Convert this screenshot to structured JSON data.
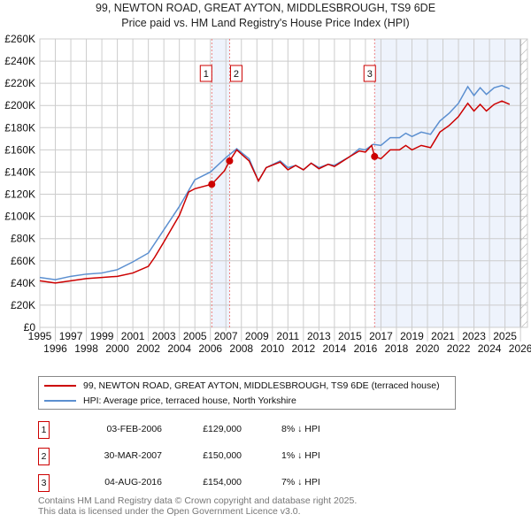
{
  "chart_data": {
    "type": "line",
    "title": "99, NEWTON ROAD, GREAT AYTON, MIDDLESBROUGH, TS9 6DE",
    "subtitle": "Price paid vs. HM Land Registry's House Price Index (HPI)",
    "ylim": [
      0,
      260000
    ],
    "xlim": [
      1995,
      2026
    ],
    "y_ticks": [
      "£0",
      "£20K",
      "£40K",
      "£60K",
      "£80K",
      "£100K",
      "£120K",
      "£140K",
      "£160K",
      "£180K",
      "£200K",
      "£220K",
      "£240K",
      "£260K"
    ],
    "x_ticks": [
      "1995",
      "1996",
      "1997",
      "1998",
      "1999",
      "2000",
      "2001",
      "2002",
      "2003",
      "2004",
      "2005",
      "2006",
      "2007",
      "2008",
      "2009",
      "2010",
      "2011",
      "2012",
      "2013",
      "2014",
      "2015",
      "2016",
      "2017",
      "2018",
      "2019",
      "2020",
      "2021",
      "2022",
      "2023",
      "2024",
      "2025",
      "2026"
    ],
    "series": [
      {
        "name": "99, NEWTON ROAD, GREAT AYTON, MIDDLESBROUGH, TS9 6DE (terraced house)",
        "color": "#cc0000",
        "x": [
          1995,
          1996,
          1997,
          1998,
          1999,
          2000,
          2001,
          2002,
          2002.4,
          2003,
          2004,
          2004.6,
          2005,
          2006.09,
          2006.9,
          2007.24,
          2007.7,
          2008.5,
          2009.1,
          2009.6,
          2010.5,
          2011,
          2011.5,
          2012,
          2012.5,
          2013,
          2013.6,
          2014,
          2015,
          2015.6,
          2016,
          2016.4,
          2016.59,
          2017,
          2017.6,
          2018.2,
          2018.6,
          2019,
          2019.6,
          2020.2,
          2020.8,
          2021.4,
          2022,
          2022.6,
          2023,
          2023.4,
          2023.8,
          2024.3,
          2024.8,
          2025.3
        ],
        "y": [
          42000,
          40000,
          42000,
          44000,
          45000,
          46000,
          49000,
          55000,
          63000,
          77000,
          101000,
          122000,
          125000,
          129000,
          141000,
          150000,
          160000,
          150000,
          132000,
          144000,
          149000,
          142000,
          146000,
          142000,
          148000,
          143000,
          147000,
          145000,
          154000,
          159000,
          158000,
          164000,
          154000,
          152000,
          160000,
          160000,
          164000,
          160000,
          164000,
          162000,
          176000,
          182000,
          190000,
          202000,
          195000,
          201000,
          195000,
          201000,
          204000,
          201000
        ]
      },
      {
        "name": "HPI: Average price, terraced house, North Yorkshire",
        "color": "#5b8fd0",
        "x": [
          1995,
          1996,
          1997,
          1998,
          1999,
          2000,
          2001,
          2002,
          2003,
          2004,
          2005,
          2006,
          2007,
          2007.7,
          2008.5,
          2009.1,
          2009.6,
          2010.5,
          2011,
          2011.5,
          2012,
          2012.5,
          2013,
          2013.6,
          2014,
          2015,
          2015.6,
          2016,
          2016.5,
          2017,
          2017.6,
          2018.2,
          2018.6,
          2019,
          2019.6,
          2020.2,
          2020.8,
          2021.4,
          2022,
          2022.6,
          2023,
          2023.4,
          2023.8,
          2024.3,
          2024.8,
          2025.3
        ],
        "y": [
          45000,
          43000,
          46000,
          48000,
          49000,
          52000,
          59000,
          67000,
          88000,
          109000,
          133000,
          140000,
          153000,
          161000,
          152000,
          132000,
          144000,
          150000,
          144000,
          146000,
          142000,
          148000,
          144000,
          147000,
          146000,
          154000,
          161000,
          160000,
          165000,
          164000,
          171000,
          171000,
          175000,
          172000,
          176000,
          174000,
          186000,
          193000,
          202000,
          217000,
          209000,
          216000,
          210000,
          216000,
          218000,
          215000
        ]
      }
    ],
    "sales": [
      {
        "label": "1",
        "date": "03-FEB-2006",
        "year": 2006.09,
        "price": "£129,000",
        "value": 129000,
        "hpi": "8% ↓ HPI"
      },
      {
        "label": "2",
        "date": "30-MAR-2007",
        "year": 2007.24,
        "price": "£150,000",
        "value": 150000,
        "hpi": "1% ↓ HPI"
      },
      {
        "label": "3",
        "date": "04-AUG-2016",
        "year": 2016.59,
        "price": "£154,000",
        "value": 154000,
        "hpi": "7% ↓ HPI"
      }
    ]
  },
  "footer": {
    "line1": "Contains HM Land Registry data © Crown copyright and database right 2025.",
    "line2": "This data is licensed under the Open Government Licence v3.0."
  }
}
